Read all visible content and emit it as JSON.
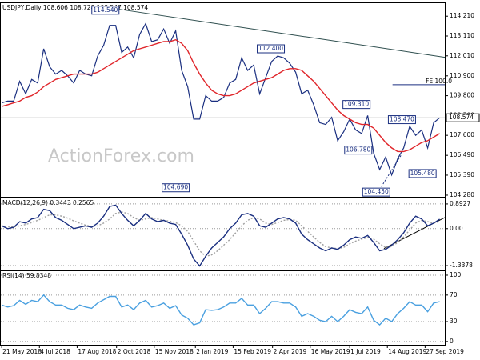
{
  "chart_data": [
    {
      "type": "line",
      "title": "USDJPY,Daily  108.606 108.728 108.547 108.574",
      "watermark": "ActionForex.com",
      "x": [
        "2018-05-21",
        "2018-05-28",
        "2018-06-04",
        "2018-06-11",
        "2018-06-18",
        "2018-06-25",
        "2018-07-02",
        "2018-07-09",
        "2018-07-16",
        "2018-07-23",
        "2018-07-30",
        "2018-08-06",
        "2018-08-13",
        "2018-08-20",
        "2018-08-27",
        "2018-09-03",
        "2018-09-10",
        "2018-09-17",
        "2018-09-24",
        "2018-10-01",
        "2018-10-08",
        "2018-10-15",
        "2018-10-22",
        "2018-10-29",
        "2018-11-05",
        "2018-11-12",
        "2018-11-19",
        "2018-11-26",
        "2018-12-03",
        "2018-12-10",
        "2018-12-17",
        "2018-12-24",
        "2018-12-31",
        "2019-01-07",
        "2019-01-14",
        "2019-01-21",
        "2019-01-28",
        "2019-02-04",
        "2019-02-11",
        "2019-02-18",
        "2019-02-25",
        "2019-03-04",
        "2019-03-11",
        "2019-03-18",
        "2019-03-25",
        "2019-04-01",
        "2019-04-08",
        "2019-04-15",
        "2019-04-22",
        "2019-04-29",
        "2019-05-06",
        "2019-05-13",
        "2019-05-20",
        "2019-05-27",
        "2019-06-03",
        "2019-06-10",
        "2019-06-17",
        "2019-06-24",
        "2019-07-01",
        "2019-07-08",
        "2019-07-15",
        "2019-07-22",
        "2019-07-29",
        "2019-08-05",
        "2019-08-12",
        "2019-08-19",
        "2019-08-26",
        "2019-09-02",
        "2019-09-09",
        "2019-09-16",
        "2019-09-23",
        "2019-09-30",
        "2019-10-07",
        "2019-10-14"
      ],
      "series": [
        {
          "color": "#1a2f80",
          "dash": false,
          "values": [
            109.4,
            109.5,
            109.5,
            110.6,
            109.9,
            110.7,
            110.5,
            112.4,
            111.4,
            111.0,
            111.2,
            110.9,
            110.5,
            111.2,
            111.0,
            110.9,
            112.0,
            112.6,
            113.7,
            113.7,
            112.2,
            112.5,
            111.9,
            113.2,
            113.8,
            112.8,
            112.9,
            113.5,
            112.7,
            113.4,
            111.2,
            110.3,
            108.5,
            108.5,
            109.8,
            109.5,
            109.5,
            109.7,
            110.5,
            110.7,
            111.9,
            111.2,
            111.5,
            109.9,
            110.8,
            111.7,
            112.0,
            111.9,
            111.6,
            111.1,
            109.9,
            110.1,
            109.3,
            108.3,
            108.2,
            108.6,
            107.3,
            107.8,
            108.5,
            107.9,
            107.7,
            108.7,
            106.6,
            105.7,
            106.4,
            105.4,
            106.3,
            106.9,
            108.1,
            107.6,
            107.9,
            106.9,
            108.3,
            108.574
          ]
        },
        {
          "color": "#e0262b",
          "dash": false,
          "values": [
            109.2,
            109.3,
            109.4,
            109.5,
            109.7,
            109.8,
            110.0,
            110.3,
            110.5,
            110.7,
            110.8,
            110.9,
            111.0,
            111.0,
            111.0,
            111.0,
            111.1,
            111.3,
            111.5,
            111.7,
            111.9,
            112.1,
            112.3,
            112.4,
            112.5,
            112.6,
            112.7,
            112.8,
            112.8,
            112.9,
            112.7,
            112.3,
            111.6,
            111.0,
            110.5,
            110.1,
            109.9,
            109.8,
            109.8,
            109.9,
            110.1,
            110.3,
            110.5,
            110.6,
            110.7,
            110.8,
            111.0,
            111.2,
            111.3,
            111.3,
            111.2,
            110.9,
            110.6,
            110.2,
            109.8,
            109.4,
            109.0,
            108.7,
            108.5,
            108.3,
            108.2,
            108.2,
            108.0,
            107.6,
            107.2,
            106.9,
            106.7,
            106.7,
            106.8,
            107.0,
            107.2,
            107.3,
            107.5,
            107.7
          ]
        }
      ],
      "ylim": [
        104.19,
        114.93
      ],
      "yticks": [
        {
          "value": 114.21,
          "label": "114.210"
        },
        {
          "value": 113.11,
          "label": "113.110"
        },
        {
          "value": 112.01,
          "label": "112.010"
        },
        {
          "value": 110.9,
          "label": "110.900"
        },
        {
          "value": 109.8,
          "label": "109.800"
        },
        {
          "value": 108.7,
          "label": "108.700"
        },
        {
          "value": 107.6,
          "label": "107.600"
        },
        {
          "value": 106.49,
          "label": "106.490"
        },
        {
          "value": 105.39,
          "label": "105.390"
        },
        {
          "value": 104.28,
          "label": "104.280"
        }
      ],
      "grid": false,
      "current": {
        "value": 108.574,
        "label": "108.574"
      },
      "annotations": [
        {
          "x": "2018-09-19",
          "value": 114.54,
          "label": "114.540"
        },
        {
          "x": "2019-03-31",
          "value": 112.4,
          "label": "112.400"
        },
        {
          "x": "2019-07-09",
          "value": 109.31,
          "label": "109.310"
        },
        {
          "x": "2019-08-31",
          "value": 108.47,
          "label": "108.470"
        },
        {
          "x": "2019-07-11",
          "value": 106.78,
          "label": "106.780"
        },
        {
          "x": "2019-09-24",
          "value": 105.48,
          "label": "105.480"
        },
        {
          "x": "2018-12-10",
          "value": 104.69,
          "label": "104.690"
        },
        {
          "x": "2019-08-01",
          "value": 104.45,
          "label": "104.450"
        }
      ],
      "levels": [
        {
          "label": "FE 100.0",
          "value": 110.41,
          "from": "2019-08-20"
        }
      ],
      "trendlines": [
        {
          "color": "#2f4f4f",
          "dash": false,
          "x": [
            "2018-10-04",
            "2019-10-20"
          ],
          "y": [
            114.6,
            111.93
          ]
        },
        {
          "color": "#1a2f80",
          "dash": true,
          "x": [
            "2019-08-03",
            "2019-08-30"
          ],
          "y": [
            104.45,
            106.5
          ]
        }
      ]
    },
    {
      "type": "line",
      "title": "MACD(12,26,9) 0.3443 0.2565",
      "x": [
        "2018-05-21",
        "2018-05-28",
        "2018-06-04",
        "2018-06-11",
        "2018-06-18",
        "2018-06-25",
        "2018-07-02",
        "2018-07-09",
        "2018-07-16",
        "2018-07-23",
        "2018-07-30",
        "2018-08-06",
        "2018-08-13",
        "2018-08-20",
        "2018-08-27",
        "2018-09-03",
        "2018-09-10",
        "2018-09-17",
        "2018-09-24",
        "2018-10-01",
        "2018-10-08",
        "2018-10-15",
        "2018-10-22",
        "2018-10-29",
        "2018-11-05",
        "2018-11-12",
        "2018-11-19",
        "2018-11-26",
        "2018-12-03",
        "2018-12-10",
        "2018-12-17",
        "2018-12-24",
        "2018-12-31",
        "2019-01-07",
        "2019-01-14",
        "2019-01-21",
        "2019-01-28",
        "2019-02-04",
        "2019-02-11",
        "2019-02-18",
        "2019-02-25",
        "2019-03-04",
        "2019-03-11",
        "2019-03-18",
        "2019-03-25",
        "2019-04-01",
        "2019-04-08",
        "2019-04-15",
        "2019-04-22",
        "2019-04-29",
        "2019-05-06",
        "2019-05-13",
        "2019-05-20",
        "2019-05-27",
        "2019-06-03",
        "2019-06-10",
        "2019-06-17",
        "2019-06-24",
        "2019-07-01",
        "2019-07-08",
        "2019-07-15",
        "2019-07-22",
        "2019-07-29",
        "2019-08-05",
        "2019-08-12",
        "2019-08-19",
        "2019-08-26",
        "2019-09-02",
        "2019-09-09",
        "2019-09-16",
        "2019-09-23",
        "2019-09-30",
        "2019-10-07",
        "2019-10-14"
      ],
      "series": [
        {
          "color": "#a0a0a0",
          "dash": true,
          "values": [
            0.1,
            0.08,
            0.06,
            0.1,
            0.15,
            0.22,
            0.3,
            0.4,
            0.5,
            0.5,
            0.45,
            0.38,
            0.28,
            0.2,
            0.12,
            0.08,
            0.1,
            0.2,
            0.35,
            0.55,
            0.6,
            0.55,
            0.4,
            0.3,
            0.35,
            0.4,
            0.35,
            0.3,
            0.27,
            0.22,
            0.1,
            -0.1,
            -0.45,
            -0.8,
            -1.0,
            -0.95,
            -0.8,
            -0.6,
            -0.4,
            -0.15,
            0.1,
            0.3,
            0.4,
            0.35,
            0.2,
            0.15,
            0.22,
            0.3,
            0.33,
            0.3,
            0.1,
            -0.1,
            -0.3,
            -0.5,
            -0.65,
            -0.7,
            -0.72,
            -0.68,
            -0.55,
            -0.45,
            -0.38,
            -0.32,
            -0.38,
            -0.55,
            -0.68,
            -0.65,
            -0.5,
            -0.3,
            -0.05,
            0.2,
            0.3,
            0.25,
            0.2,
            0.26
          ]
        },
        {
          "color": "#1a2f80",
          "dash": false,
          "values": [
            0.1,
            0.0,
            0.05,
            0.25,
            0.2,
            0.35,
            0.4,
            0.7,
            0.65,
            0.4,
            0.3,
            0.15,
            0.0,
            0.05,
            0.1,
            0.05,
            0.2,
            0.45,
            0.8,
            0.85,
            0.55,
            0.3,
            0.1,
            0.3,
            0.55,
            0.35,
            0.25,
            0.3,
            0.2,
            0.15,
            -0.2,
            -0.6,
            -1.1,
            -1.35,
            -1.0,
            -0.7,
            -0.5,
            -0.3,
            0.0,
            0.2,
            0.5,
            0.55,
            0.45,
            0.1,
            0.05,
            0.2,
            0.35,
            0.4,
            0.35,
            0.2,
            -0.2,
            -0.4,
            -0.55,
            -0.7,
            -0.8,
            -0.7,
            -0.75,
            -0.6,
            -0.4,
            -0.3,
            -0.35,
            -0.25,
            -0.5,
            -0.8,
            -0.75,
            -0.6,
            -0.4,
            -0.15,
            0.2,
            0.45,
            0.35,
            0.1,
            0.2,
            0.34
          ]
        }
      ],
      "ylim": [
        -1.481,
        1.093
      ],
      "yticks": [
        0.8927,
        {
          "value": 0,
          "label": "0.00"
        },
        -1.3378
      ],
      "grid": true,
      "trendlines": [
        {
          "color": "#000000",
          "dash": false,
          "x": [
            "2019-08-10",
            "2019-10-20"
          ],
          "y": [
            -0.72,
            0.4
          ]
        }
      ]
    },
    {
      "type": "line",
      "title": "RSI(14) 59.8348",
      "x": [
        "2018-05-21",
        "2018-05-28",
        "2018-06-04",
        "2018-06-11",
        "2018-06-18",
        "2018-06-25",
        "2018-07-02",
        "2018-07-09",
        "2018-07-16",
        "2018-07-23",
        "2018-07-30",
        "2018-08-06",
        "2018-08-13",
        "2018-08-20",
        "2018-08-27",
        "2018-09-03",
        "2018-09-10",
        "2018-09-17",
        "2018-09-24",
        "2018-10-01",
        "2018-10-08",
        "2018-10-15",
        "2018-10-22",
        "2018-10-29",
        "2018-11-05",
        "2018-11-12",
        "2018-11-19",
        "2018-11-26",
        "2018-12-03",
        "2018-12-10",
        "2018-12-17",
        "2018-12-24",
        "2018-12-31",
        "2019-01-07",
        "2019-01-14",
        "2019-01-21",
        "2019-01-28",
        "2019-02-04",
        "2019-02-11",
        "2019-02-18",
        "2019-02-25",
        "2019-03-04",
        "2019-03-11",
        "2019-03-18",
        "2019-03-25",
        "2019-04-01",
        "2019-04-08",
        "2019-04-15",
        "2019-04-22",
        "2019-04-29",
        "2019-05-06",
        "2019-05-13",
        "2019-05-20",
        "2019-05-27",
        "2019-06-03",
        "2019-06-10",
        "2019-06-17",
        "2019-06-24",
        "2019-07-01",
        "2019-07-08",
        "2019-07-15",
        "2019-07-22",
        "2019-07-29",
        "2019-08-05",
        "2019-08-12",
        "2019-08-19",
        "2019-08-26",
        "2019-09-02",
        "2019-09-09",
        "2019-09-16",
        "2019-09-23",
        "2019-09-30",
        "2019-10-07",
        "2019-10-14"
      ],
      "series": [
        {
          "color": "#4aa0e0",
          "dash": false,
          "values": [
            55,
            52,
            54,
            62,
            56,
            62,
            60,
            70,
            60,
            55,
            55,
            50,
            48,
            55,
            52,
            50,
            58,
            63,
            68,
            68,
            52,
            55,
            48,
            58,
            62,
            52,
            54,
            58,
            50,
            54,
            40,
            35,
            25,
            28,
            48,
            47,
            48,
            52,
            58,
            58,
            65,
            55,
            55,
            42,
            50,
            60,
            60,
            58,
            58,
            52,
            38,
            42,
            38,
            32,
            30,
            38,
            30,
            38,
            48,
            44,
            42,
            52,
            32,
            25,
            35,
            30,
            42,
            50,
            60,
            55,
            55,
            45,
            58,
            60
          ]
        }
      ],
      "ylim": [
        -5,
        106
      ],
      "yticks": [
        100,
        70,
        30,
        0
      ],
      "grid": true,
      "xlim": [
        "2018-05-19",
        "2019-10-20"
      ],
      "xticks": [
        {
          "value": "2018-05-21",
          "label": "21 May 2018"
        },
        {
          "value": "2018-07-04",
          "label": "4 Jul 2018"
        },
        {
          "value": "2018-08-17",
          "label": "17 Aug 2018"
        },
        {
          "value": "2018-10-02",
          "label": "2 Oct 2018"
        },
        {
          "value": "2018-11-15",
          "label": "15 Nov 2018"
        },
        {
          "value": "2019-01-02",
          "label": "2 Jan 2019"
        },
        {
          "value": "2019-02-15",
          "label": "15 Feb 2019"
        },
        {
          "value": "2019-04-02",
          "label": "2 Apr 2019"
        },
        {
          "value": "2019-05-16",
          "label": "16 May 2019"
        },
        {
          "value": "2019-07-01",
          "label": "1 Jul 2019"
        },
        {
          "value": "2019-08-14",
          "label": "14 Aug 2019"
        },
        {
          "value": "2019-09-27",
          "label": "27 Sep 2019"
        }
      ]
    }
  ]
}
